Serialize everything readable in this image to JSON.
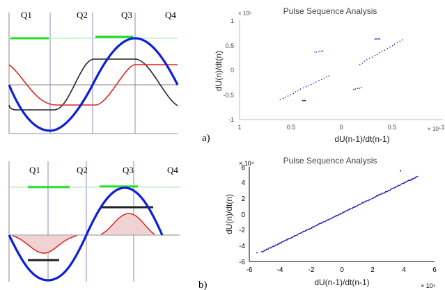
{
  "colors": {
    "green": "#22dd22",
    "gray_line": "#888888",
    "black": "#222222",
    "red": "#dd2222",
    "blue": "#0a1edc",
    "pulse_fill": "#f1d2d2",
    "grid": "#8888bb",
    "scatter": "#1c1cb4"
  },
  "panel_labels": {
    "a": "a)",
    "b": "b)"
  },
  "chart_data": [
    {
      "type": "line",
      "segment_labels": [
        "Q1",
        "Q2",
        "Q3",
        "Q4"
      ],
      "x": [
        0,
        1,
        2,
        3,
        4
      ],
      "series": [
        {
          "color": "green",
          "style": "horizontal segments during Q1 and Q3"
        },
        {
          "color": "black",
          "style": "step"
        },
        {
          "color": "red",
          "style": "step"
        },
        {
          "color": "blue",
          "style": "sine"
        }
      ]
    },
    {
      "type": "scatter",
      "title": "Pulse Sequence Analysis",
      "xlabel": "dU(n-1)/dt(n-1)",
      "ylabel": "dU(n)/dt(n)",
      "x_multiplier": "× 10⁵",
      "y_multiplier": "× 10⁵",
      "xlim": [
        -1,
        1
      ],
      "ylim": [
        -1,
        1
      ],
      "x_ticks": [
        "1",
        "0.5",
        "0",
        "0.5",
        "1"
      ],
      "y_ticks": [
        "1",
        "0.5",
        "0",
        "-0.5",
        "-1"
      ],
      "scale": 100000,
      "clusters": [
        {
          "x": [
            -0.6,
            -0.12
          ],
          "y": [
            -0.6,
            -0.12
          ]
        },
        {
          "x": [
            -0.38,
            -0.35
          ],
          "y": [
            -0.62,
            -0.62
          ]
        },
        {
          "x": [
            -0.26,
            -0.18
          ],
          "y": [
            0.35,
            0.37
          ]
        },
        {
          "x": [
            0.12,
            0.2
          ],
          "y": [
            -0.4,
            -0.36
          ]
        },
        {
          "x": [
            0.18,
            0.6
          ],
          "y": [
            0.1,
            0.6
          ]
        },
        {
          "x": [
            0.33,
            0.38
          ],
          "y": [
            0.61,
            0.61
          ]
        }
      ],
      "grid": false
    },
    {
      "type": "line",
      "segment_labels": [
        "Q1",
        "Q2",
        "Q3",
        "Q4"
      ],
      "x": [
        0,
        1,
        2,
        3,
        4
      ],
      "series": [
        {
          "color": "green",
          "style": "horizontal segments during Q1 and Q3"
        },
        {
          "color": "black",
          "style": "short horizontal segments at troughs"
        },
        {
          "color": "red",
          "style": "half-wave pulses"
        },
        {
          "color": "blue",
          "style": "sine"
        }
      ]
    },
    {
      "type": "scatter",
      "title": "Pulse Sequence Analysis",
      "xlabel": "dU(n-1)/dt(n-1)",
      "ylabel": "dU(n)/dt(n)",
      "x_multiplier": "× 10⁴",
      "y_multiplier": "× 10⁴",
      "xlim": [
        -6,
        6
      ],
      "ylim": [
        -6,
        6
      ],
      "x_ticks": [
        "-6",
        "-4",
        "-2",
        "0",
        "2",
        "4",
        "6"
      ],
      "y_ticks": [
        "6",
        "4",
        "2",
        "0",
        "-2",
        "-4",
        "-6"
      ],
      "scale": 10000,
      "clusters": [
        {
          "x": [
            -5.2,
            4.9
          ],
          "y": [
            -4.8,
            4.8
          ]
        }
      ],
      "outliers": [
        {
          "x": 3.8,
          "y": 5.5
        },
        {
          "x": -5.5,
          "y": -4.9
        }
      ],
      "grid": false
    }
  ]
}
